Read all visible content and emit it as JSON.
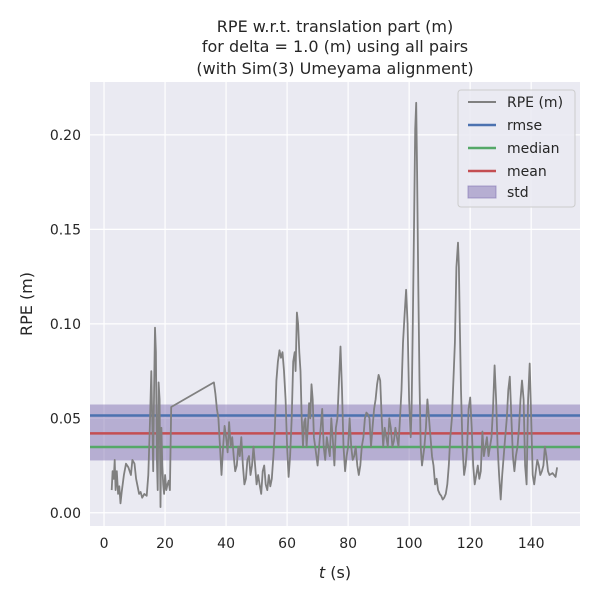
{
  "chart_data": {
    "type": "line",
    "title_lines": [
      "RPE w.r.t. translation part (m)",
      "for delta = 1.0 (m) using all pairs",
      "(with Sim(3) Umeyama alignment)"
    ],
    "xlabel": "t (s)",
    "xlabel_var": "t",
    "xlabel_unit": " (s)",
    "ylabel": "RPE (m)",
    "xlim": [
      -4.6,
      156
    ],
    "ylim": [
      -0.007,
      0.228
    ],
    "xticks": [
      0,
      20,
      40,
      60,
      80,
      100,
      120,
      140
    ],
    "xtick_labels": [
      "0",
      "20",
      "40",
      "60",
      "80",
      "100",
      "120",
      "140"
    ],
    "yticks": [
      0.0,
      0.05,
      0.1,
      0.15,
      0.2
    ],
    "ytick_labels": [
      "0.00",
      "0.05",
      "0.10",
      "0.15",
      "0.20"
    ],
    "grid": true,
    "legend_position": "top-right",
    "legend": [
      "RPE (m)",
      "rmse",
      "median",
      "mean",
      "std"
    ],
    "colors": {
      "background": "#eaeaf2",
      "grid": "#ffffff",
      "rpe": "#808080",
      "rmse": "#4c72b0",
      "median": "#55a868",
      "mean": "#c44e52",
      "std": "#8172b2"
    },
    "stats": {
      "rmse": 0.0515,
      "median": 0.0348,
      "mean": 0.042,
      "std_low": 0.0277,
      "std_high": 0.0573
    },
    "series": [
      {
        "name": "RPE (m)",
        "points": [
          [
            2.5,
            0.012
          ],
          [
            2.8,
            0.022
          ],
          [
            3.2,
            0.018
          ],
          [
            3.5,
            0.028
          ],
          [
            3.8,
            0.012
          ],
          [
            4.2,
            0.022
          ],
          [
            4.6,
            0.01
          ],
          [
            5.0,
            0.014
          ],
          [
            5.4,
            0.005
          ],
          [
            5.8,
            0.011
          ],
          [
            6.5,
            0.02
          ],
          [
            7.2,
            0.026
          ],
          [
            8.0,
            0.024
          ],
          [
            8.8,
            0.02
          ],
          [
            9.3,
            0.028
          ],
          [
            10.0,
            0.026
          ],
          [
            10.5,
            0.018
          ],
          [
            11.0,
            0.014
          ],
          [
            11.5,
            0.01
          ],
          [
            12.0,
            0.011
          ],
          [
            12.5,
            0.008
          ],
          [
            13.2,
            0.01
          ],
          [
            14.0,
            0.009
          ],
          [
            14.5,
            0.02
          ],
          [
            15.0,
            0.045
          ],
          [
            15.5,
            0.075
          ],
          [
            15.8,
            0.05
          ],
          [
            16.1,
            0.022
          ],
          [
            16.4,
            0.065
          ],
          [
            16.7,
            0.098
          ],
          [
            17.0,
            0.085
          ],
          [
            17.3,
            0.03
          ],
          [
            17.6,
            0.012
          ],
          [
            17.9,
            0.069
          ],
          [
            18.2,
            0.06
          ],
          [
            18.5,
            0.003
          ],
          [
            18.8,
            0.045
          ],
          [
            19.1,
            0.025
          ],
          [
            19.4,
            0.015
          ],
          [
            19.7,
            0.01
          ],
          [
            20.0,
            0.02
          ],
          [
            20.4,
            0.012
          ],
          [
            20.8,
            0.015
          ],
          [
            21.2,
            0.017
          ],
          [
            21.6,
            0.012
          ],
          [
            22.0,
            0.056
          ],
          [
            36.0,
            0.069
          ],
          [
            36.5,
            0.063
          ],
          [
            37.0,
            0.055
          ],
          [
            37.5,
            0.05
          ],
          [
            38.0,
            0.035
          ],
          [
            38.5,
            0.02
          ],
          [
            39.0,
            0.034
          ],
          [
            39.5,
            0.046
          ],
          [
            40.0,
            0.04
          ],
          [
            40.5,
            0.032
          ],
          [
            41.0,
            0.048
          ],
          [
            41.5,
            0.035
          ],
          [
            42.0,
            0.04
          ],
          [
            42.5,
            0.03
          ],
          [
            43.0,
            0.022
          ],
          [
            43.5,
            0.025
          ],
          [
            44.0,
            0.035
          ],
          [
            44.5,
            0.03
          ],
          [
            45.0,
            0.04
          ],
          [
            45.5,
            0.025
          ],
          [
            46.0,
            0.015
          ],
          [
            46.5,
            0.018
          ],
          [
            47.0,
            0.028
          ],
          [
            47.5,
            0.03
          ],
          [
            48.0,
            0.02
          ],
          [
            48.5,
            0.025
          ],
          [
            49.0,
            0.035
          ],
          [
            49.5,
            0.025
          ],
          [
            50.0,
            0.015
          ],
          [
            50.5,
            0.02
          ],
          [
            51.0,
            0.015
          ],
          [
            51.5,
            0.01
          ],
          [
            52.0,
            0.022
          ],
          [
            52.5,
            0.025
          ],
          [
            53.0,
            0.015
          ],
          [
            53.5,
            0.012
          ],
          [
            54.0,
            0.02
          ],
          [
            54.5,
            0.014
          ],
          [
            55.0,
            0.018
          ],
          [
            55.5,
            0.03
          ],
          [
            56.0,
            0.045
          ],
          [
            56.5,
            0.07
          ],
          [
            57.0,
            0.08
          ],
          [
            57.5,
            0.086
          ],
          [
            58.0,
            0.082
          ],
          [
            58.5,
            0.085
          ],
          [
            59.0,
            0.075
          ],
          [
            59.5,
            0.06
          ],
          [
            60.0,
            0.035
          ],
          [
            60.5,
            0.019
          ],
          [
            61.0,
            0.03
          ],
          [
            61.5,
            0.05
          ],
          [
            62.0,
            0.08
          ],
          [
            62.5,
            0.085
          ],
          [
            62.8,
            0.075
          ],
          [
            63.2,
            0.106
          ],
          [
            63.6,
            0.1
          ],
          [
            64.0,
            0.085
          ],
          [
            64.4,
            0.075
          ],
          [
            64.8,
            0.05
          ],
          [
            65.2,
            0.035
          ],
          [
            65.6,
            0.048
          ],
          [
            66.0,
            0.05
          ],
          [
            66.4,
            0.035
          ],
          [
            66.8,
            0.045
          ],
          [
            67.2,
            0.058
          ],
          [
            67.6,
            0.05
          ],
          [
            68.0,
            0.068
          ],
          [
            68.4,
            0.06
          ],
          [
            68.8,
            0.04
          ],
          [
            69.2,
            0.035
          ],
          [
            69.6,
            0.03
          ],
          [
            70.0,
            0.025
          ],
          [
            70.5,
            0.035
          ],
          [
            71.0,
            0.045
          ],
          [
            71.5,
            0.055
          ],
          [
            72.0,
            0.035
          ],
          [
            72.5,
            0.028
          ],
          [
            73.0,
            0.04
          ],
          [
            73.5,
            0.035
          ],
          [
            74.0,
            0.03
          ],
          [
            74.5,
            0.05
          ],
          [
            75.0,
            0.038
          ],
          [
            75.5,
            0.025
          ],
          [
            76.0,
            0.045
          ],
          [
            76.5,
            0.05
          ],
          [
            77.0,
            0.07
          ],
          [
            77.5,
            0.088
          ],
          [
            78.0,
            0.065
          ],
          [
            78.5,
            0.035
          ],
          [
            79.0,
            0.022
          ],
          [
            79.5,
            0.03
          ],
          [
            80.0,
            0.035
          ],
          [
            80.5,
            0.05
          ],
          [
            81.0,
            0.035
          ],
          [
            81.5,
            0.028
          ],
          [
            82.0,
            0.03
          ],
          [
            82.5,
            0.035
          ],
          [
            83.0,
            0.025
          ],
          [
            83.5,
            0.02
          ],
          [
            84.0,
            0.025
          ],
          [
            84.5,
            0.035
          ],
          [
            85.0,
            0.04
          ],
          [
            85.5,
            0.05
          ],
          [
            86.0,
            0.053
          ],
          [
            86.5,
            0.052
          ],
          [
            87.0,
            0.05
          ],
          [
            87.5,
            0.035
          ],
          [
            88.0,
            0.045
          ],
          [
            88.5,
            0.055
          ],
          [
            89.0,
            0.06
          ],
          [
            89.5,
            0.068
          ],
          [
            90.0,
            0.073
          ],
          [
            90.5,
            0.07
          ],
          [
            91.0,
            0.05
          ],
          [
            91.5,
            0.035
          ],
          [
            92.0,
            0.045
          ],
          [
            92.5,
            0.04
          ],
          [
            93.0,
            0.035
          ],
          [
            93.5,
            0.05
          ],
          [
            94.0,
            0.045
          ],
          [
            94.5,
            0.035
          ],
          [
            95.0,
            0.038
          ],
          [
            95.5,
            0.045
          ],
          [
            96.0,
            0.04
          ],
          [
            96.5,
            0.035
          ],
          [
            97.0,
            0.05
          ],
          [
            97.5,
            0.065
          ],
          [
            98.0,
            0.09
          ],
          [
            98.5,
            0.105
          ],
          [
            99.0,
            0.118
          ],
          [
            99.5,
            0.1
          ],
          [
            100.0,
            0.06
          ],
          [
            100.5,
            0.04
          ],
          [
            100.8,
            0.055
          ],
          [
            101.2,
            0.1
          ],
          [
            101.6,
            0.15
          ],
          [
            102.0,
            0.203
          ],
          [
            102.3,
            0.217
          ],
          [
            102.6,
            0.18
          ],
          [
            103.0,
            0.12
          ],
          [
            103.4,
            0.07
          ],
          [
            103.8,
            0.035
          ],
          [
            104.2,
            0.025
          ],
          [
            104.6,
            0.03
          ],
          [
            105.0,
            0.035
          ],
          [
            105.5,
            0.045
          ],
          [
            106.0,
            0.06
          ],
          [
            106.5,
            0.05
          ],
          [
            107.0,
            0.04
          ],
          [
            107.5,
            0.03
          ],
          [
            108.0,
            0.025
          ],
          [
            108.5,
            0.015
          ],
          [
            109.0,
            0.018
          ],
          [
            109.5,
            0.012
          ],
          [
            110.0,
            0.01
          ],
          [
            110.5,
            0.009
          ],
          [
            111.0,
            0.007
          ],
          [
            111.5,
            0.008
          ],
          [
            112.0,
            0.01
          ],
          [
            112.5,
            0.015
          ],
          [
            113.0,
            0.025
          ],
          [
            113.5,
            0.04
          ],
          [
            114.0,
            0.05
          ],
          [
            114.5,
            0.07
          ],
          [
            115.0,
            0.09
          ],
          [
            115.5,
            0.13
          ],
          [
            116.0,
            0.143
          ],
          [
            116.3,
            0.13
          ],
          [
            116.6,
            0.1
          ],
          [
            117.0,
            0.065
          ],
          [
            117.5,
            0.035
          ],
          [
            118.0,
            0.02
          ],
          [
            118.5,
            0.025
          ],
          [
            119.0,
            0.035
          ],
          [
            119.5,
            0.055
          ],
          [
            120.0,
            0.061
          ],
          [
            120.5,
            0.045
          ],
          [
            121.0,
            0.025
          ],
          [
            121.5,
            0.015
          ],
          [
            122.0,
            0.02
          ],
          [
            122.5,
            0.025
          ],
          [
            123.0,
            0.018
          ],
          [
            123.5,
            0.022
          ],
          [
            124.0,
            0.043
          ],
          [
            124.5,
            0.03
          ],
          [
            125.0,
            0.035
          ],
          [
            125.5,
            0.04
          ],
          [
            126.0,
            0.03
          ],
          [
            126.5,
            0.035
          ],
          [
            127.0,
            0.04
          ],
          [
            127.5,
            0.055
          ],
          [
            128.0,
            0.078
          ],
          [
            128.5,
            0.06
          ],
          [
            129.0,
            0.035
          ],
          [
            129.5,
            0.02
          ],
          [
            130.0,
            0.007
          ],
          [
            130.5,
            0.02
          ],
          [
            131.0,
            0.03
          ],
          [
            131.5,
            0.04
          ],
          [
            132.0,
            0.05
          ],
          [
            132.5,
            0.065
          ],
          [
            133.0,
            0.072
          ],
          [
            133.5,
            0.05
          ],
          [
            134.0,
            0.03
          ],
          [
            134.5,
            0.022
          ],
          [
            135.0,
            0.03
          ],
          [
            135.5,
            0.035
          ],
          [
            136.0,
            0.045
          ],
          [
            136.5,
            0.06
          ],
          [
            137.0,
            0.07
          ],
          [
            137.5,
            0.06
          ],
          [
            138.0,
            0.025
          ],
          [
            138.5,
            0.015
          ],
          [
            139.0,
            0.06
          ],
          [
            139.5,
            0.079
          ],
          [
            140.0,
            0.05
          ],
          [
            140.5,
            0.02
          ],
          [
            141.0,
            0.015
          ],
          [
            141.5,
            0.022
          ],
          [
            142.0,
            0.028
          ],
          [
            142.5,
            0.025
          ],
          [
            143.0,
            0.02
          ],
          [
            143.5,
            0.022
          ],
          [
            144.0,
            0.025
          ],
          [
            144.5,
            0.035
          ],
          [
            145.0,
            0.03
          ],
          [
            145.5,
            0.022
          ],
          [
            146.0,
            0.02
          ],
          [
            147.0,
            0.021
          ],
          [
            148.0,
            0.019
          ],
          [
            148.5,
            0.024
          ]
        ]
      }
    ]
  }
}
